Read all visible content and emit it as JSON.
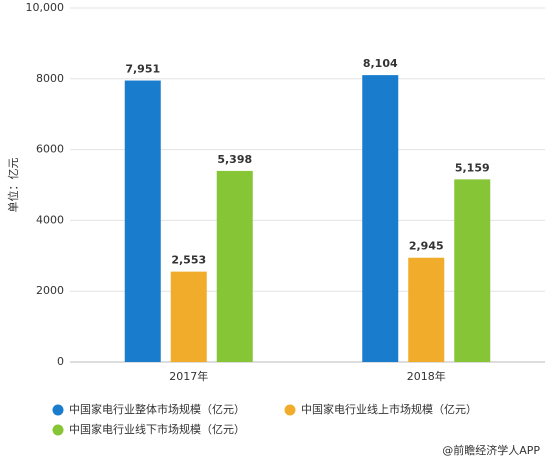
{
  "chart_data": {
    "type": "bar",
    "y_label": "单位：亿元",
    "categories": [
      "2017年",
      "2018年"
    ],
    "series": [
      {
        "name": "中国家电行业整体市场规模（亿元）",
        "color": "#1a7ccc",
        "values": [
          7951,
          8104
        ],
        "value_labels": [
          "7,951",
          "8,104"
        ]
      },
      {
        "name": "中国家电行业线上市场规模（亿元）",
        "color": "#f0ac2a",
        "values": [
          2553,
          2945
        ],
        "value_labels": [
          "2,553",
          "2,945"
        ]
      },
      {
        "name": "中国家电行业线下市场规模（亿元）",
        "color": "#86c535",
        "values": [
          5398,
          5159
        ],
        "value_labels": [
          "5,398",
          "5,159"
        ]
      }
    ],
    "ylim": [
      0,
      10000
    ],
    "yticks": [
      0,
      2000,
      4000,
      6000,
      8000,
      {
        "value": 10000,
        "label": "10,000"
      }
    ],
    "grid": true,
    "source": "@前瞻经济学人APP"
  }
}
